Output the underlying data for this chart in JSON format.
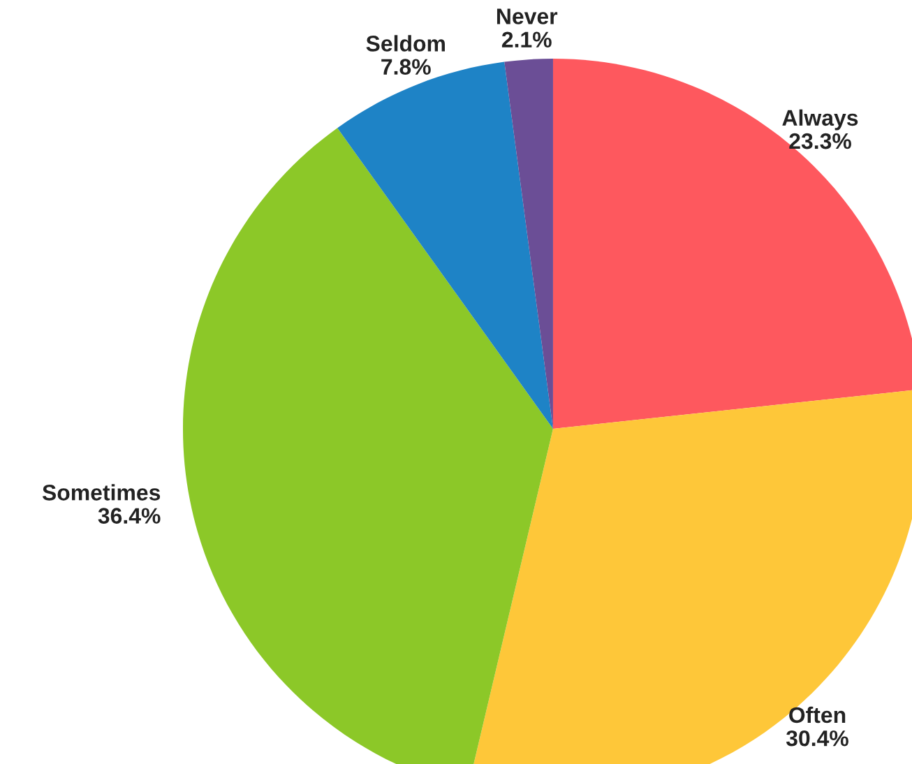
{
  "chart_data": {
    "type": "pie",
    "categories": [
      "Always",
      "Often",
      "Sometimes",
      "Seldom",
      "Never"
    ],
    "values": [
      23.3,
      30.4,
      36.4,
      7.8,
      2.1
    ],
    "value_labels": [
      "23.3%",
      "30.4%",
      "36.4%",
      "7.8%",
      "2.1%"
    ],
    "colors": [
      "#fe585e",
      "#fec739",
      "#8cc828",
      "#1e83c6",
      "#6b4e96"
    ],
    "legend": false
  }
}
